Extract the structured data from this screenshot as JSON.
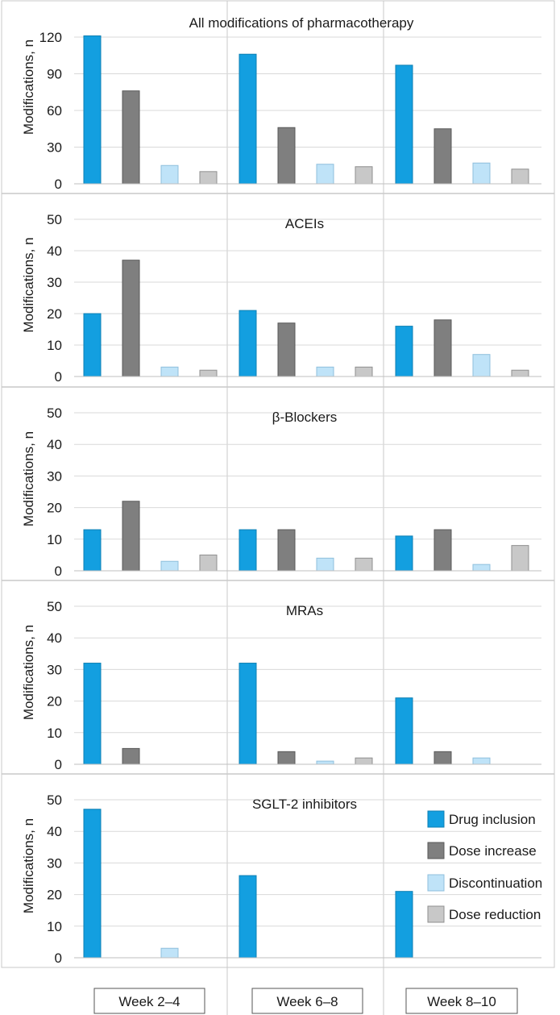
{
  "colors": {
    "drug_inclusion": "#139fe0",
    "dose_increase": "#7f7f7f",
    "discontinuation": "#bfe3f8",
    "dose_reduction": "#c8c8c8",
    "frame": "#c9c9c9",
    "grid": "#d9d9d9"
  },
  "groups": [
    "Week 2–4",
    "Week 6–8",
    "Week 8–10"
  ],
  "legend": [
    "Drug inclusion",
    "Dose increase",
    "Discontinuation",
    "Dose reduction"
  ],
  "chart_data": [
    {
      "type": "bar",
      "title": "All modifications of pharmacotherapy",
      "ylabel": "Modifications, n",
      "ylim": [
        0,
        120
      ],
      "yticks": [
        0,
        30,
        60,
        90,
        120
      ],
      "categories": [
        "Week 2–4",
        "Week 6–8",
        "Week 8–10"
      ],
      "series": [
        {
          "name": "Drug inclusion",
          "values": [
            121,
            106,
            97
          ]
        },
        {
          "name": "Dose increase",
          "values": [
            76,
            46,
            45
          ]
        },
        {
          "name": "Discontinuation",
          "values": [
            15,
            16,
            17
          ]
        },
        {
          "name": "Dose reduction",
          "values": [
            10,
            14,
            12
          ]
        }
      ]
    },
    {
      "type": "bar",
      "title": "ACEIs",
      "ylabel": "Modifications, n",
      "ylim": [
        0,
        50
      ],
      "yticks": [
        0,
        10,
        20,
        30,
        40,
        50
      ],
      "categories": [
        "Week 2–4",
        "Week 6–8",
        "Week 8–10"
      ],
      "series": [
        {
          "name": "Drug inclusion",
          "values": [
            20,
            21,
            16
          ]
        },
        {
          "name": "Dose increase",
          "values": [
            37,
            17,
            18
          ]
        },
        {
          "name": "Discontinuation",
          "values": [
            3,
            3,
            7
          ]
        },
        {
          "name": "Dose reduction",
          "values": [
            2,
            3,
            2
          ]
        }
      ]
    },
    {
      "type": "bar",
      "title": "β-Blockers",
      "ylabel": "Modifications, n",
      "ylim": [
        0,
        50
      ],
      "yticks": [
        0,
        10,
        20,
        30,
        40,
        50
      ],
      "categories": [
        "Week 2–4",
        "Week 6–8",
        "Week 8–10"
      ],
      "series": [
        {
          "name": "Drug inclusion",
          "values": [
            13,
            13,
            11
          ]
        },
        {
          "name": "Dose increase",
          "values": [
            22,
            13,
            13
          ]
        },
        {
          "name": "Discontinuation",
          "values": [
            3,
            4,
            2
          ]
        },
        {
          "name": "Dose reduction",
          "values": [
            5,
            4,
            8
          ]
        }
      ]
    },
    {
      "type": "bar",
      "title": "MRAs",
      "ylabel": "Modifications, n",
      "ylim": [
        0,
        50
      ],
      "yticks": [
        0,
        10,
        20,
        30,
        40,
        50
      ],
      "categories": [
        "Week 2–4",
        "Week 6–8",
        "Week 8–10"
      ],
      "series": [
        {
          "name": "Drug inclusion",
          "values": [
            32,
            32,
            21
          ]
        },
        {
          "name": "Dose increase",
          "values": [
            5,
            4,
            4
          ]
        },
        {
          "name": "Discontinuation",
          "values": [
            0,
            1,
            2
          ]
        },
        {
          "name": "Dose reduction",
          "values": [
            0,
            2,
            0
          ]
        }
      ]
    },
    {
      "type": "bar",
      "title": "SGLT-2 inhibitors",
      "ylabel": "Modifications, n",
      "ylim": [
        0,
        50
      ],
      "yticks": [
        0,
        10,
        20,
        30,
        40,
        50
      ],
      "categories": [
        "Week 2–4",
        "Week 6–8",
        "Week 8–10"
      ],
      "series": [
        {
          "name": "Drug inclusion",
          "values": [
            47,
            26,
            21
          ]
        },
        {
          "name": "Dose increase",
          "values": [
            0,
            0,
            0
          ]
        },
        {
          "name": "Discontinuation",
          "values": [
            3,
            0,
            0
          ]
        },
        {
          "name": "Dose reduction",
          "values": [
            0,
            0,
            0
          ]
        }
      ]
    }
  ]
}
